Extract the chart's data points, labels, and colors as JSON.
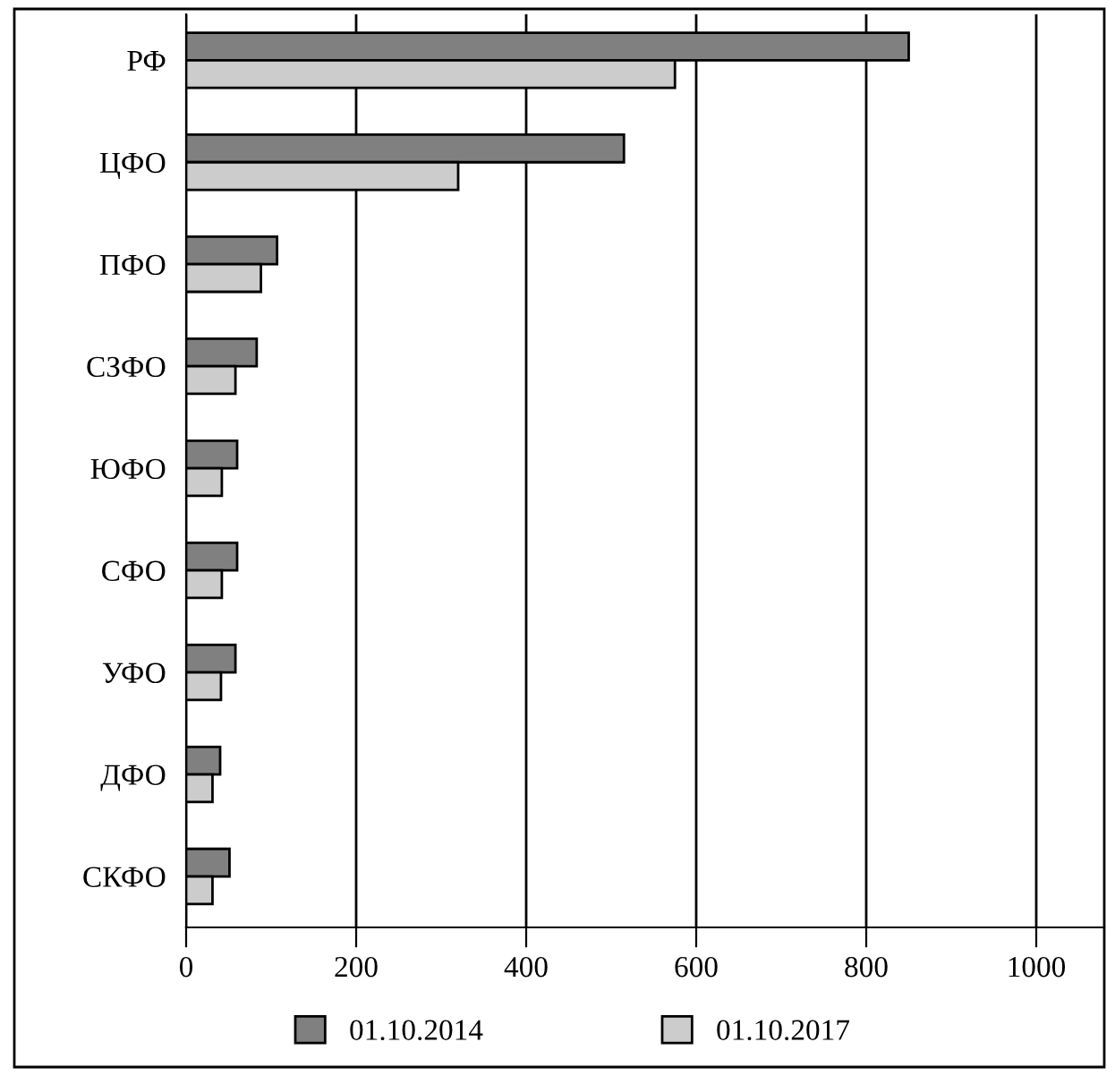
{
  "chart_data": {
    "type": "bar",
    "orientation": "horizontal",
    "categories": [
      "РФ",
      "ЦФО",
      "ПФО",
      "СЗФО",
      "ЮФО",
      "СФО",
      "УФО",
      "ДФО",
      "СКФО"
    ],
    "series": [
      {
        "name": "01.10.2014",
        "color": "#808080",
        "values": [
          850,
          515,
          107,
          83,
          60,
          60,
          58,
          40,
          51
        ]
      },
      {
        "name": "01.10.2017",
        "color": "#cccccc",
        "values": [
          575,
          320,
          88,
          58,
          42,
          42,
          41,
          31,
          31
        ]
      }
    ],
    "xlim": [
      0,
      1080
    ],
    "xticks": [
      0,
      200,
      400,
      600,
      800,
      1000
    ],
    "grid": "x",
    "legend": "bottom"
  }
}
